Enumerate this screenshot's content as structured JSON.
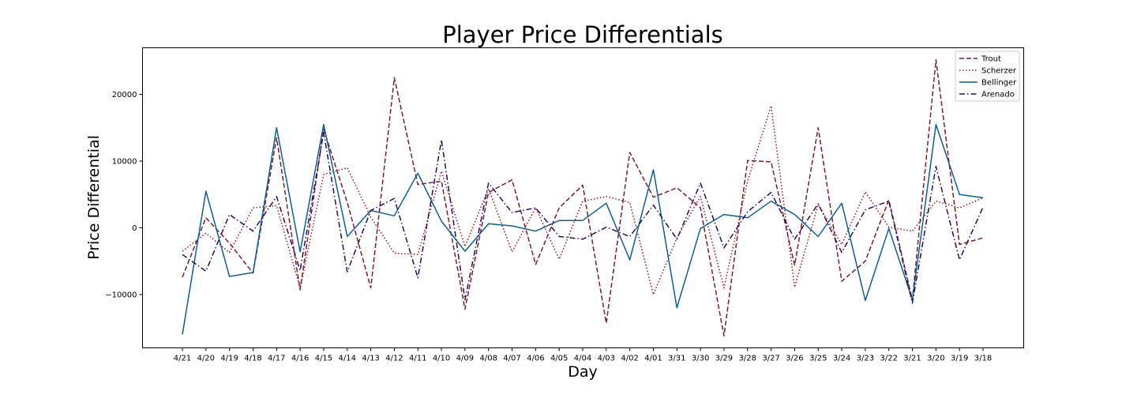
{
  "chart_data": {
    "type": "line",
    "title": "Player Price Differentials",
    "xlabel": "Day",
    "ylabel": "Price Differential",
    "ylim": [
      -18000,
      27000
    ],
    "yticks": [
      -10000,
      0,
      10000,
      20000
    ],
    "ytick_labels": [
      "−10000",
      "0",
      "10000",
      "20000"
    ],
    "legend_position": "top-right",
    "categories": [
      "4/21",
      "4/20",
      "4/19",
      "4/18",
      "4/17",
      "4/16",
      "4/15",
      "4/14",
      "4/13",
      "4/12",
      "4/11",
      "4/10",
      "4/09",
      "4/08",
      "4/07",
      "4/06",
      "4/05",
      "4/04",
      "4/03",
      "4/02",
      "4/01",
      "3/31",
      "3/30",
      "3/29",
      "3/28",
      "3/27",
      "3/26",
      "3/25",
      "3/24",
      "3/23",
      "3/22",
      "3/21",
      "3/20",
      "3/19",
      "3/18"
    ],
    "series": [
      {
        "name": "Trout",
        "color": "#7b1c2e",
        "dash": "dashed",
        "values": [
          -7400,
          1500,
          -2300,
          -6800,
          13500,
          -9300,
          14800,
          3800,
          -9000,
          22500,
          6500,
          7000,
          -12200,
          5300,
          7200,
          -5500,
          3000,
          6400,
          -14300,
          11300,
          4600,
          6000,
          3000,
          -16200,
          10100,
          9900,
          -5600,
          15000,
          -8000,
          -5000,
          4200,
          -10800,
          25200,
          -2500,
          -1500
        ]
      },
      {
        "name": "Scherzer",
        "color": "#a0141e",
        "dash": "dotted",
        "values": [
          -3500,
          -800,
          -3700,
          3000,
          3300,
          -9000,
          8000,
          9000,
          1600,
          -3800,
          -4000,
          8500,
          -2800,
          5900,
          -3600,
          3000,
          -4700,
          4000,
          4700,
          3800,
          -10000,
          -1500,
          4700,
          -9000,
          7000,
          18300,
          -8900,
          3500,
          -2500,
          5400,
          100,
          -500,
          4000,
          3000,
          4500
        ]
      },
      {
        "name": "Bellinger",
        "color": "#0e5f96",
        "dash": "solid",
        "values": [
          -16000,
          5500,
          -7300,
          -6700,
          15000,
          -3600,
          15500,
          -1300,
          2600,
          1800,
          8200,
          1000,
          -3500,
          600,
          300,
          -500,
          1100,
          1100,
          3700,
          -4800,
          8700,
          -12000,
          -100,
          2000,
          1500,
          4000,
          2000,
          -1300,
          3700,
          -10900,
          -100,
          -10800,
          15500,
          5000,
          4500
        ]
      },
      {
        "name": "Arenado",
        "color": "#2e0a5e",
        "dash": "dashdot",
        "values": [
          -4000,
          -6500,
          2000,
          -500,
          4700,
          -6400,
          14300,
          -6600,
          2600,
          4400,
          -7500,
          13200,
          -10800,
          6700,
          2300,
          3000,
          -1300,
          -1700,
          100,
          -1300,
          3400,
          -1700,
          6700,
          -3000,
          2400,
          5300,
          -1700,
          3600,
          -3700,
          2700,
          4000,
          -11300,
          9200,
          -4800,
          3100
        ]
      }
    ]
  }
}
